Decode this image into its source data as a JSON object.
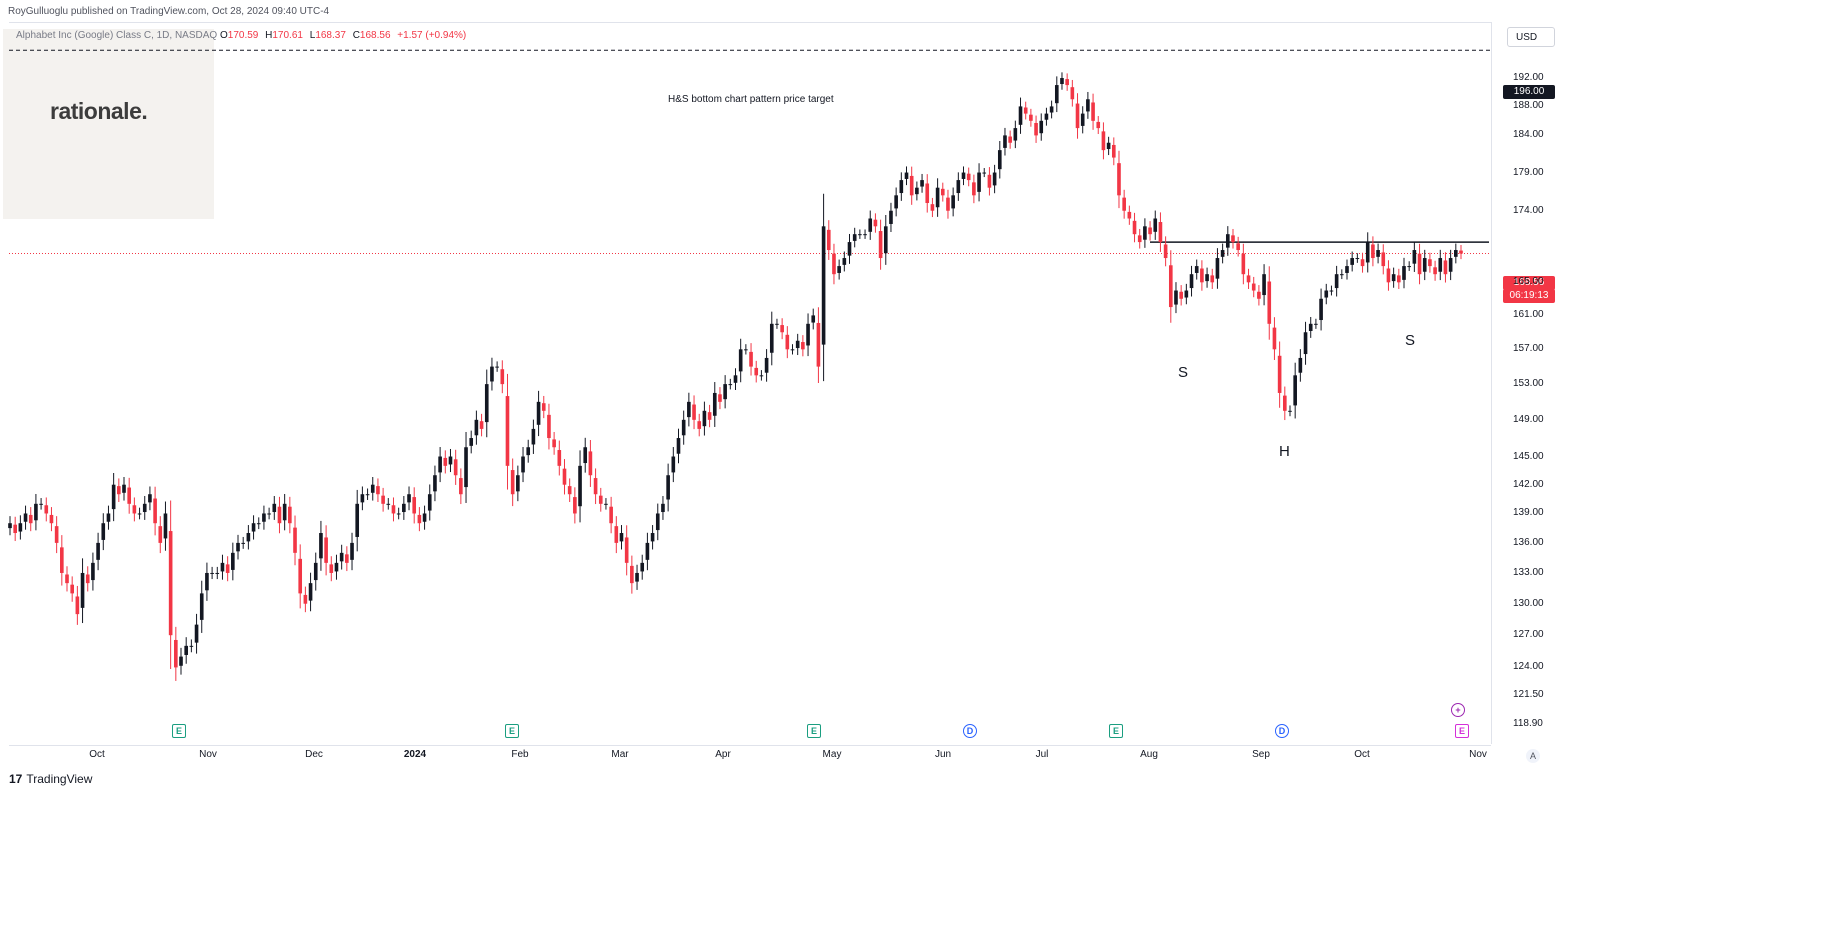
{
  "header": {
    "publisher": "RoyGulluoglu published on TradingView.com, Oct 28, 2024 09:40 UTC-4"
  },
  "legend": {
    "name": "Alphabet Inc (Google) Class C, 1D, NASDAQ",
    "o_label": "O",
    "o": "170.59",
    "h_label": "H",
    "h": "170.61",
    "l_label": "L",
    "l": "168.37",
    "c_label": "C",
    "c": "168.56",
    "change": "+1.57 (+0.94%)"
  },
  "watermark": {
    "brand": "rationale."
  },
  "currency": "USD",
  "annotations": {
    "target_label": "H&S bottom chart pattern price target",
    "target_tag": "196.00",
    "last_price_tag": "168.56",
    "countdown": "06:19:13",
    "left_shoulder": "S",
    "head": "H",
    "right_shoulder": "S"
  },
  "events": [
    {
      "type": "e",
      "icon": "earnings-icon",
      "label": "E"
    },
    {
      "type": "e",
      "icon": "earnings-icon",
      "label": "E"
    },
    {
      "type": "e",
      "icon": "earnings-icon",
      "label": "E"
    },
    {
      "type": "d",
      "icon": "dividend-icon",
      "label": "D"
    },
    {
      "type": "e",
      "icon": "earnings-icon",
      "label": "E"
    },
    {
      "type": "d",
      "icon": "dividend-icon",
      "label": "D"
    },
    {
      "type": "ep",
      "icon": "upcoming-earnings-icon",
      "label": "E"
    }
  ],
  "footer": {
    "brand": "TradingView",
    "logo": "17"
  },
  "colors": {
    "up": "#131722",
    "down": "#f23645",
    "accent": "#2962ff",
    "grid": "#e0e3eb"
  },
  "chart_data": {
    "type": "candlestick",
    "title": "",
    "y_axis_ticks": [
      "192.00",
      "188.00",
      "184.00",
      "179.00",
      "174.00",
      "165.00",
      "161.00",
      "157.00",
      "153.00",
      "149.00",
      "145.00",
      "142.00",
      "139.00",
      "136.00",
      "133.00",
      "130.00",
      "127.00",
      "124.00",
      "121.50",
      "118.90"
    ],
    "y_scale": "log",
    "x_axis_ticks": [
      "Oct",
      "Nov",
      "Dec",
      "2024",
      "Feb",
      "Mar",
      "Apr",
      "May",
      "Jun",
      "Jul",
      "Aug",
      "Sep",
      "Oct",
      "Nov"
    ],
    "ylim": [
      117.5,
      200
    ],
    "target_line": 196.0,
    "neckline": 170.0,
    "last_close": 168.56,
    "annotation_points": [
      {
        "label": "S",
        "date": "2024-08-05",
        "value": 157.0
      },
      {
        "label": "H",
        "date": "2024-09-09",
        "value": 148.0
      },
      {
        "label": "S",
        "date": "2024-10-16",
        "value": 162.0
      }
    ],
    "closes": [
      138,
      137,
      138,
      139,
      138,
      140,
      140,
      139,
      138,
      136,
      133,
      132,
      131,
      129,
      133,
      132,
      134,
      136,
      138,
      139,
      142,
      141,
      142,
      140,
      139,
      139,
      140,
      141,
      138,
      136,
      139,
      127,
      124,
      125,
      126,
      126,
      128,
      131,
      133,
      133,
      133,
      134,
      133,
      135,
      136,
      136,
      137,
      138,
      138,
      139,
      139,
      140,
      138,
      140,
      138,
      135,
      131,
      130,
      132,
      134,
      137,
      134,
      133,
      134,
      135,
      134,
      136,
      140,
      141,
      141,
      142,
      141,
      140,
      140,
      139,
      139,
      140,
      141,
      139,
      138,
      139,
      141,
      143,
      145,
      144,
      145,
      143,
      141,
      146,
      147,
      149,
      148,
      153,
      155,
      155,
      153,
      144,
      141,
      143,
      145,
      146,
      148,
      151,
      150,
      147,
      146,
      144,
      142,
      141,
      139,
      144,
      146,
      143,
      141,
      140,
      140,
      138,
      136,
      137,
      134,
      132,
      133,
      134,
      136,
      137,
      139,
      140,
      143,
      145,
      147,
      149,
      151,
      149,
      148,
      150,
      149,
      152,
      151,
      153,
      153,
      154,
      157,
      157,
      155,
      154,
      154,
      156,
      160,
      160,
      159,
      157,
      157,
      158,
      157,
      160,
      161,
      155,
      172,
      169,
      166,
      167,
      168,
      170,
      171,
      171,
      171,
      173,
      172,
      168,
      172,
      174,
      176,
      178,
      179,
      176,
      177,
      178,
      175,
      174,
      177,
      176,
      174,
      176,
      178,
      179,
      178,
      176,
      179,
      179,
      177,
      179,
      182,
      184,
      183,
      185,
      188,
      187,
      186,
      184,
      186,
      187,
      188,
      191,
      192,
      191,
      189,
      185,
      187,
      189,
      186,
      185,
      182,
      183,
      181,
      176,
      174,
      173,
      171,
      170,
      172,
      171,
      173,
      170,
      168,
      162,
      164,
      163,
      164,
      166,
      167,
      165,
      166,
      165,
      168,
      169,
      171,
      170,
      169,
      166,
      165,
      164,
      163,
      166,
      160,
      157,
      152,
      150,
      150,
      154,
      156,
      159,
      160,
      160,
      163,
      164,
      164,
      166,
      166,
      167,
      168,
      168,
      167,
      170,
      168,
      169,
      167,
      165,
      166,
      165,
      167,
      167,
      169,
      166,
      168,
      167,
      166,
      168,
      166,
      168,
      169,
      168.56
    ]
  }
}
